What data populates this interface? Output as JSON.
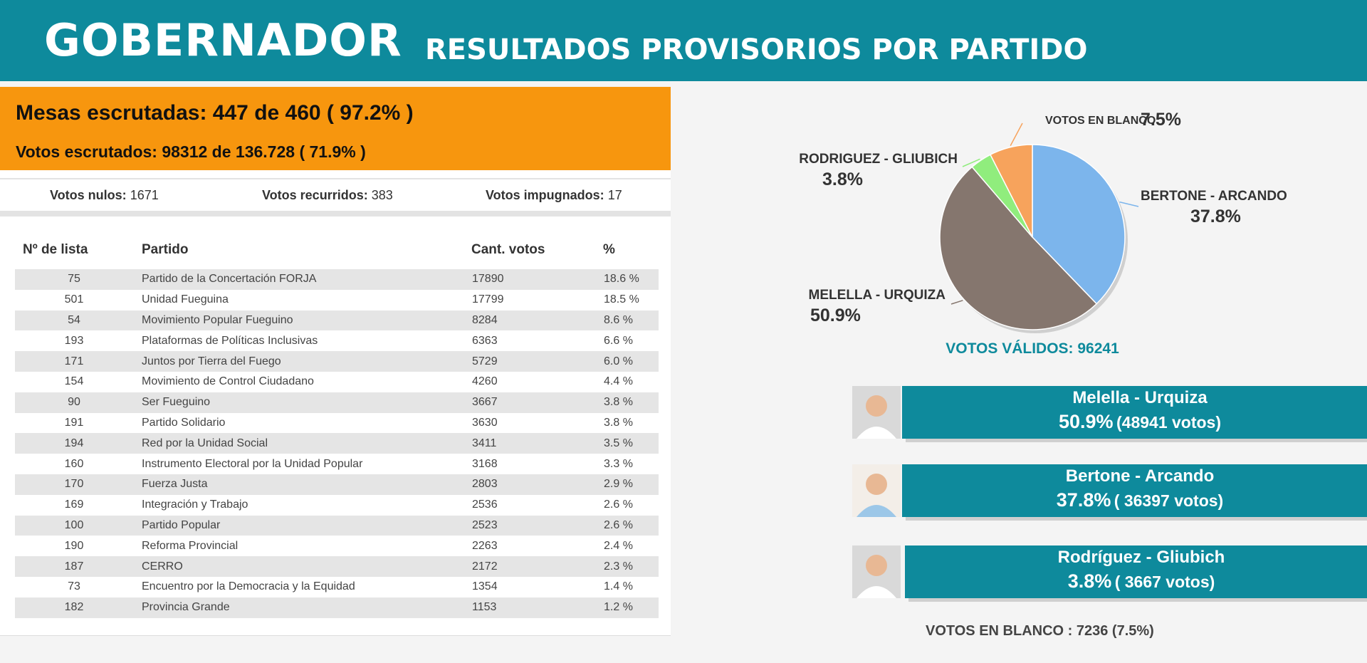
{
  "header": {
    "title": "GOBERNADOR",
    "subtitle": "RESULTADOS PROVISORIOS POR PARTIDO"
  },
  "summary": {
    "mesas": "Mesas escrutadas: 447 de 460 ( 97.2% )",
    "votos": "Votos escrutados: 98312 de 136.728 ( 71.9% )",
    "nulos_label": "Votos nulos:",
    "nulos_value": "1671",
    "recurridos_label": "Votos recurridos:",
    "recurridos_value": "383",
    "impugnados_label": "Votos impugnados:",
    "impugnados_value": "17"
  },
  "table": {
    "headers": [
      "Nº de lista",
      "Partido",
      "Cant. votos",
      "%"
    ],
    "rows": [
      [
        "75",
        "Partido de la Concertación FORJA",
        "17890",
        "18.6 %"
      ],
      [
        "501",
        "Unidad Fueguina",
        "17799",
        "18.5 %"
      ],
      [
        "54",
        "Movimiento Popular Fueguino",
        "8284",
        "8.6 %"
      ],
      [
        "193",
        "Plataformas de Políticas Inclusivas",
        "6363",
        "6.6 %"
      ],
      [
        "171",
        "Juntos por Tierra del Fuego",
        "5729",
        "6.0 %"
      ],
      [
        "154",
        "Movimiento de Control Ciudadano",
        "4260",
        "4.4 %"
      ],
      [
        "90",
        "Ser Fueguino",
        "3667",
        "3.8 %"
      ],
      [
        "191",
        "Partido Solidario",
        "3630",
        "3.8 %"
      ],
      [
        "194",
        "Red por la Unidad Social",
        "3411",
        "3.5 %"
      ],
      [
        "160",
        "Instrumento Electoral por la Unidad Popular",
        "3168",
        "3.3 %"
      ],
      [
        "170",
        "Fuerza Justa",
        "2803",
        "2.9 %"
      ],
      [
        "169",
        "Integración y Trabajo",
        "2536",
        "2.6 %"
      ],
      [
        "100",
        "Partido Popular",
        "2523",
        "2.6 %"
      ],
      [
        "190",
        "Reforma Provincial",
        "2263",
        "2.4 %"
      ],
      [
        "187",
        "CERRO",
        "2172",
        "2.3 %"
      ],
      [
        "73",
        "Encuentro por la Democracia y la Equidad",
        "1354",
        "1.4 %"
      ],
      [
        "182",
        "Provincia Grande",
        "1153",
        "1.2 %"
      ]
    ]
  },
  "chart_data": {
    "type": "pie",
    "slices": [
      {
        "label": "BERTONE - ARCANDO",
        "value": 37.8,
        "pct_text": "37.8%",
        "color": "#7cb5ec"
      },
      {
        "label": "MELELLA - URQUIZA",
        "value": 50.9,
        "pct_text": "50.9%",
        "color": "#85766e"
      },
      {
        "label": "RODRIGUEZ - GLIUBICH",
        "value": 3.8,
        "pct_text": "3.8%",
        "color": "#90ed7d"
      },
      {
        "label": "VOTOS EN BLANCO",
        "value": 7.5,
        "pct_text": "7.5%",
        "color": "#f7a35c"
      }
    ],
    "footer": "VOTOS VÁLIDOS: 96241"
  },
  "candidates": [
    {
      "name": "Melella - Urquiza",
      "pct": "50.9%",
      "votes": "(48941 votos)"
    },
    {
      "name": "Bertone - Arcando",
      "pct": "37.8%",
      "votes": "( 36397 votos)"
    },
    {
      "name": "Rodríguez - Gliubich",
      "pct": "3.8%",
      "votes": "( 3667 votos)"
    }
  ],
  "blanco": "VOTOS EN BLANCO : 7236 (7.5%)",
  "colors": {
    "accent": "#0e8a9c",
    "orange": "#f7960e"
  }
}
